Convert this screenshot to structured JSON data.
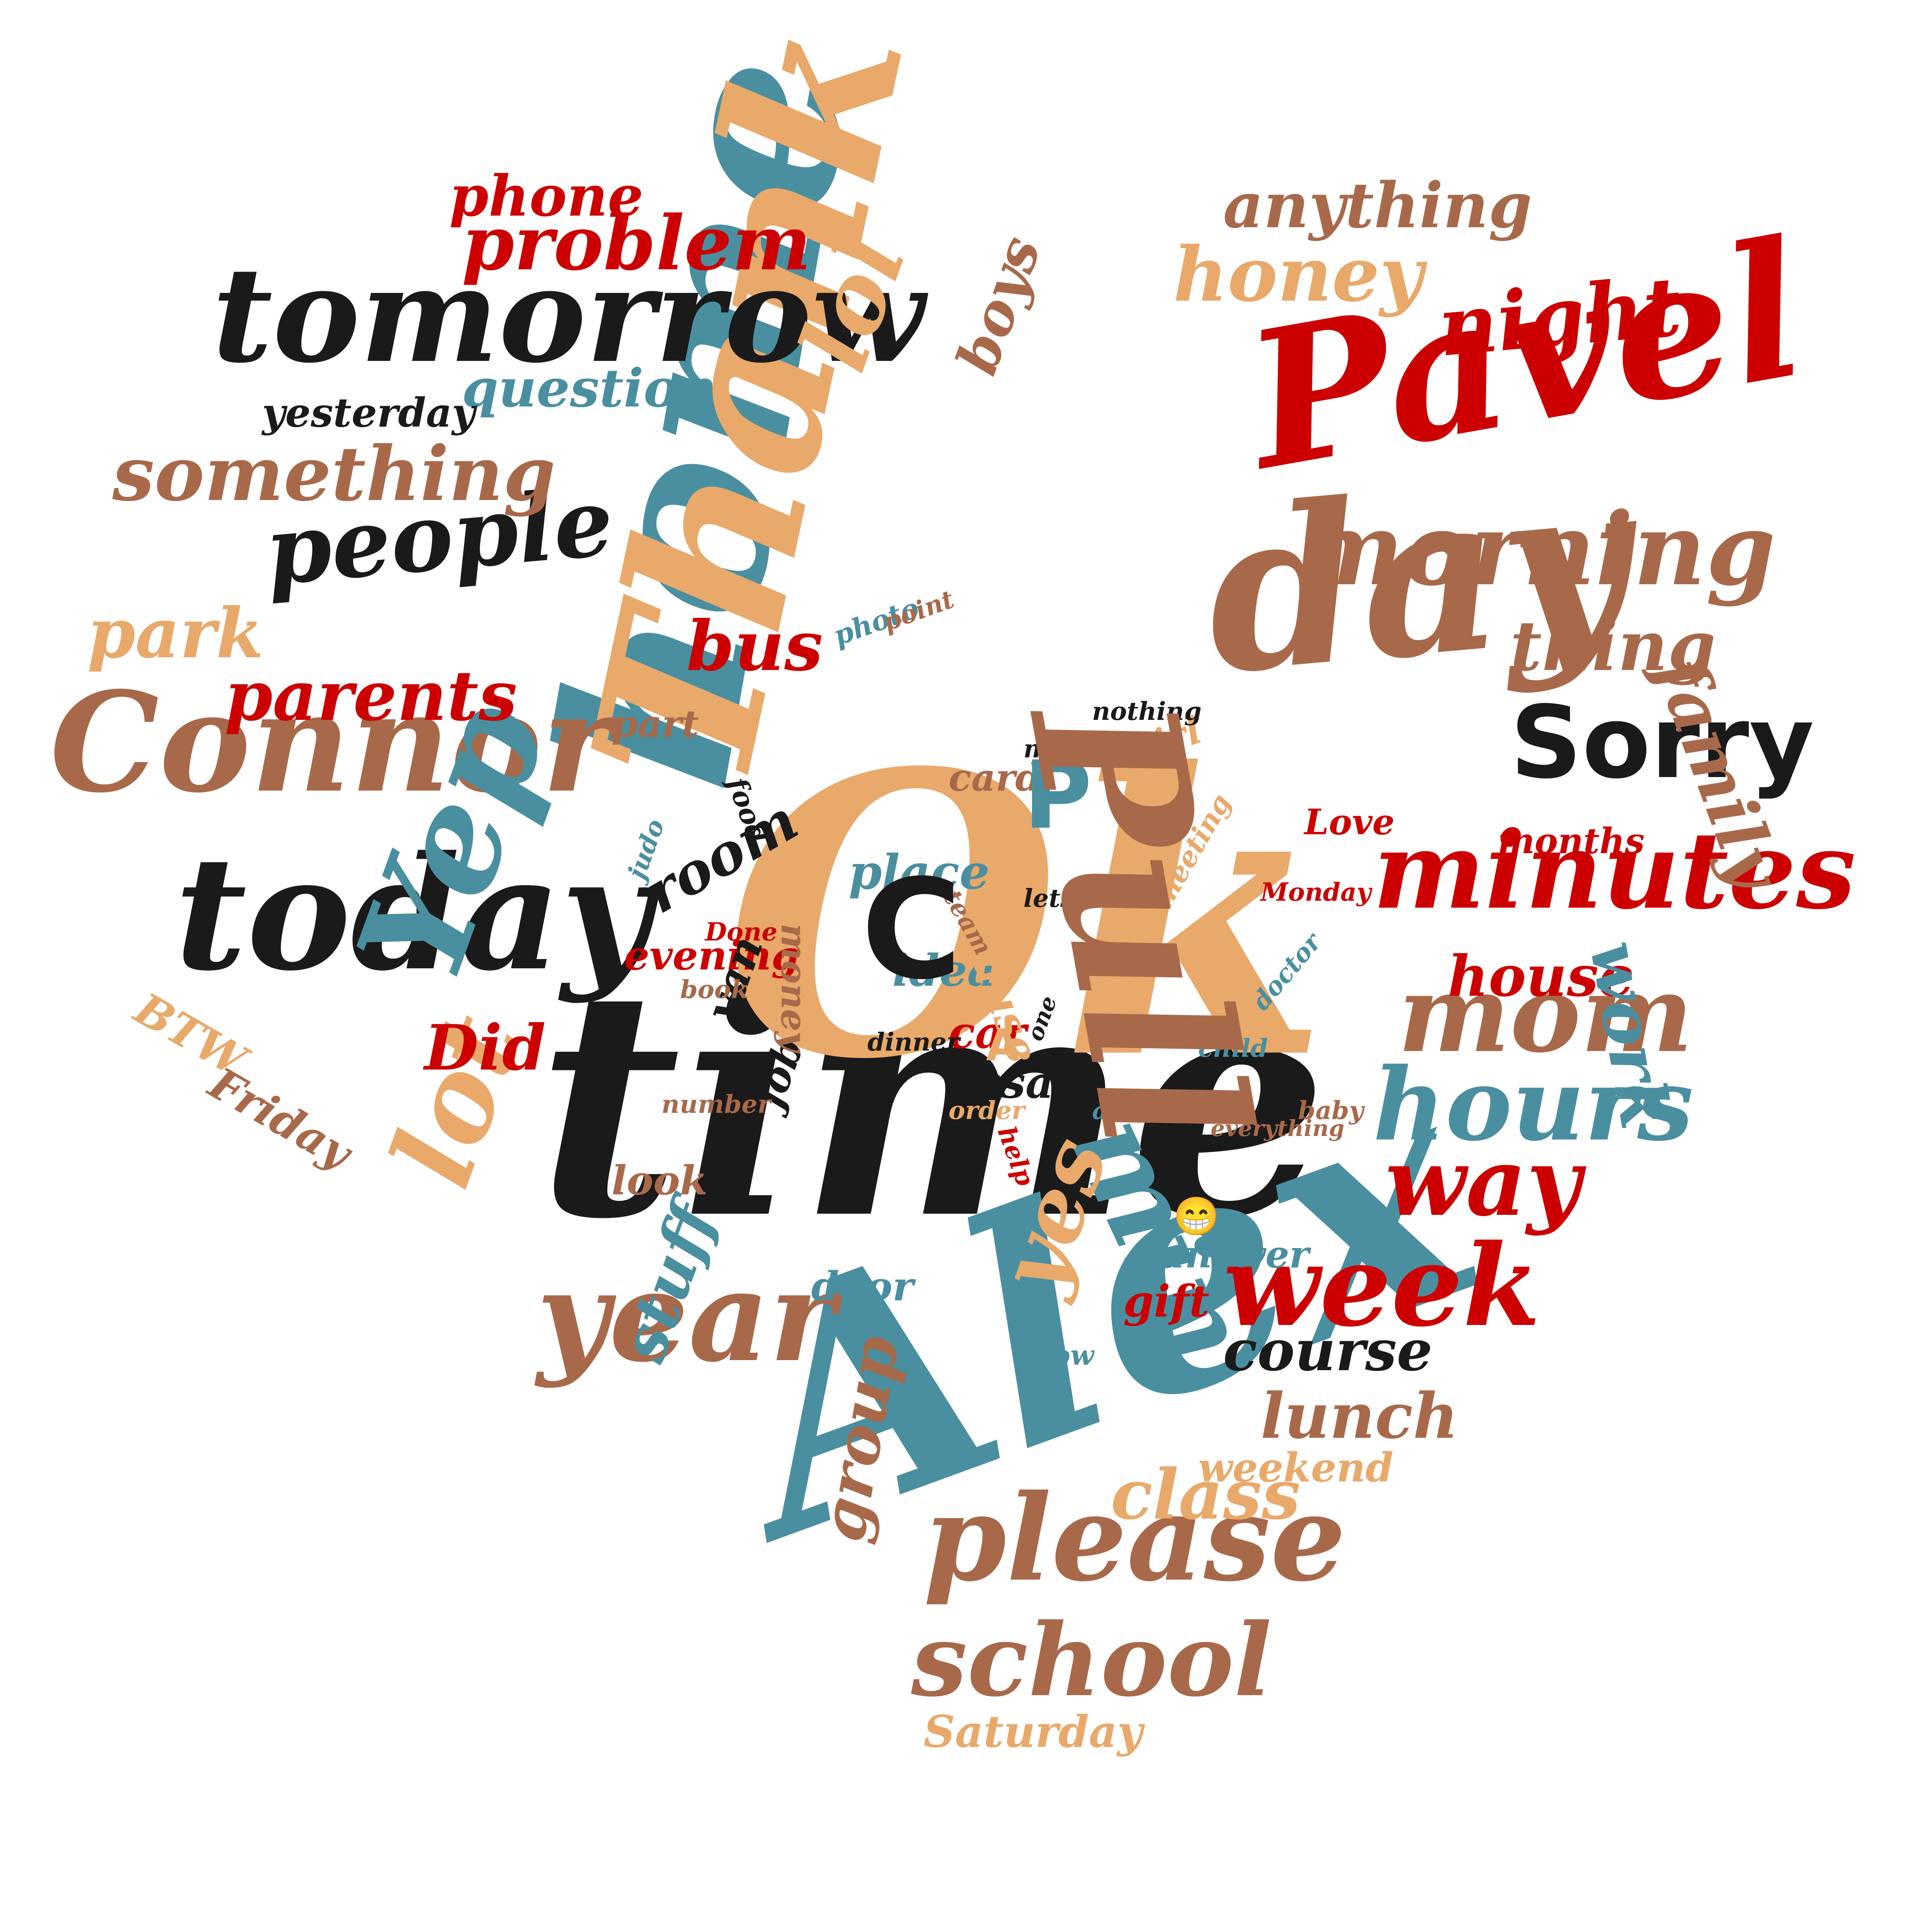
{
  "palette": {
    "black": "#1a1a1a",
    "red": "#cc0000",
    "teal": "#4a8fa0",
    "tan": "#e8a96a",
    "brown": "#a8694a"
  },
  "words": [
    {
      "text": "time",
      "color": "#1a1a1a"
    },
    {
      "text": "Ok",
      "color": "#e8a96a"
    },
    {
      "text": "Alex",
      "color": "#4a8fa0"
    },
    {
      "text": "home",
      "color": "#4a8fa0"
    },
    {
      "text": "Thank",
      "color": "#e8a96a"
    },
    {
      "text": "Pavel",
      "color": "#cc0000"
    },
    {
      "text": "day",
      "color": "#a8694a"
    },
    {
      "text": "tomorrow",
      "color": "#1a1a1a"
    },
    {
      "text": "today",
      "color": "#1a1a1a"
    },
    {
      "text": "Connor",
      "color": "#a8694a"
    },
    {
      "text": "morning",
      "color": "#a8694a"
    },
    {
      "text": "minutes",
      "color": "#cc0000"
    },
    {
      "text": "Sorry",
      "color": "#1a1a1a"
    },
    {
      "text": "Yep",
      "color": "#4a8fa0"
    },
    {
      "text": "min",
      "color": "#4a8fa0"
    },
    {
      "text": "week",
      "color": "#cc0000"
    },
    {
      "text": "mom",
      "color": "#a8694a"
    },
    {
      "text": "hours",
      "color": "#4a8fa0"
    },
    {
      "text": "year",
      "color": "#a8694a"
    },
    {
      "text": "people",
      "color": "#1a1a1a"
    },
    {
      "text": "lot",
      "color": "#e8a96a"
    },
    {
      "text": "lol",
      "color": "#e8a96a"
    },
    {
      "text": "please",
      "color": "#a8694a"
    },
    {
      "text": "school",
      "color": "#a8694a"
    },
    {
      "text": "something",
      "color": "#a8694a"
    },
    {
      "text": "problem",
      "color": "#cc0000"
    },
    {
      "text": "phone",
      "color": "#cc0000"
    },
    {
      "text": "honey",
      "color": "#e8a96a"
    },
    {
      "text": "anything",
      "color": "#a8694a"
    },
    {
      "text": "night",
      "color": "#cc0000"
    },
    {
      "text": "question",
      "color": "#4a8fa0"
    },
    {
      "text": "yesterday",
      "color": "#1a1a1a"
    },
    {
      "text": "boys",
      "color": "#a8694a"
    },
    {
      "text": "park",
      "color": "#e8a96a"
    },
    {
      "text": "parents",
      "color": "#cc0000"
    },
    {
      "text": "bus",
      "color": "#cc0000"
    },
    {
      "text": "thing",
      "color": "#a8694a"
    },
    {
      "text": "family",
      "color": "#a8694a"
    },
    {
      "text": "way",
      "color": "#cc0000"
    },
    {
      "text": "house",
      "color": "#cc0000"
    },
    {
      "text": "work",
      "color": "#4a8fa0"
    },
    {
      "text": "yes",
      "color": "#e8a96a"
    },
    {
      "text": "course",
      "color": "#1a1a1a"
    },
    {
      "text": "lunch",
      "color": "#a8694a"
    },
    {
      "text": "class",
      "color": "#e8a96a"
    },
    {
      "text": "weekend",
      "color": "#e8a96a"
    },
    {
      "text": "stuff",
      "color": "#4a8fa0"
    },
    {
      "text": "group",
      "color": "#a8694a"
    },
    {
      "text": "Saturday",
      "color": "#e8a96a"
    },
    {
      "text": "Friday",
      "color": "#a8694a"
    },
    {
      "text": "BTW",
      "color": "#e8a96a"
    },
    {
      "text": "Did",
      "color": "#cc0000"
    },
    {
      "text": "room",
      "color": "#1a1a1a"
    },
    {
      "text": "evening",
      "color": "#cc0000"
    },
    {
      "text": "place",
      "color": "#4a8fa0"
    },
    {
      "text": "idea",
      "color": "#4a8fa0"
    },
    {
      "text": "car",
      "color": "#cc0000"
    },
    {
      "text": "essay",
      "color": "#1a1a1a"
    },
    {
      "text": "cause",
      "color": "#e8a96a"
    },
    {
      "text": "answer",
      "color": "#4a8fa0"
    },
    {
      "text": "door",
      "color": "#4a8fa0"
    },
    {
      "text": "gift",
      "color": "#cc0000"
    },
    {
      "text": "look",
      "color": "#a8694a"
    },
    {
      "text": "job",
      "color": "#1a1a1a"
    },
    {
      "text": "van",
      "color": "#1a1a1a"
    },
    {
      "text": "money",
      "color": "#a8694a"
    },
    {
      "text": "card",
      "color": "#a8694a"
    },
    {
      "text": "part",
      "color": "#a8694a"
    },
    {
      "text": "girl",
      "color": "#e8a96a"
    },
    {
      "text": "Love",
      "color": "#cc0000"
    },
    {
      "text": "months",
      "color": "#cc0000"
    },
    {
      "text": "Monday",
      "color": "#cc0000"
    },
    {
      "text": "Wow",
      "color": "#4a8fa0"
    },
    {
      "text": "photo",
      "color": "#4a8fa0"
    },
    {
      "text": "point",
      "color": "#a8694a"
    },
    {
      "text": "movie",
      "color": "#1a1a1a"
    },
    {
      "text": "nothing",
      "color": "#1a1a1a"
    },
    {
      "text": "food",
      "color": "#1a1a1a"
    },
    {
      "text": "judo",
      "color": "#4a8fa0"
    },
    {
      "text": "Done",
      "color": "#cc0000"
    },
    {
      "text": "book",
      "color": "#a8694a"
    },
    {
      "text": "dinner",
      "color": "#1a1a1a"
    },
    {
      "text": "one",
      "color": "#1a1a1a"
    },
    {
      "text": "lets",
      "color": "#1a1a1a"
    },
    {
      "text": "team",
      "color": "#a8694a"
    },
    {
      "text": "meeting",
      "color": "#e8a96a"
    },
    {
      "text": "doctor",
      "color": "#4a8fa0"
    },
    {
      "text": "child",
      "color": "#4a8fa0"
    },
    {
      "text": "baby",
      "color": "#a8694a"
    },
    {
      "text": "everything",
      "color": "#a8694a"
    },
    {
      "text": "alarm",
      "color": "#4a8fa0"
    },
    {
      "text": "help",
      "color": "#cc0000"
    },
    {
      "text": "order",
      "color": "#e8a96a"
    },
    {
      "text": "number",
      "color": "#a8694a"
    },
    {
      "text": "C",
      "color": "#1a1a1a"
    },
    {
      "text": "P",
      "color": "#4a8fa0"
    },
    {
      "text": "A",
      "color": "#e8a96a"
    },
    {
      "text": "Pull",
      "color": "#a8694a"
    }
  ],
  "emoji": {
    "name": "grinning-face-icon",
    "glyph": "😁"
  }
}
